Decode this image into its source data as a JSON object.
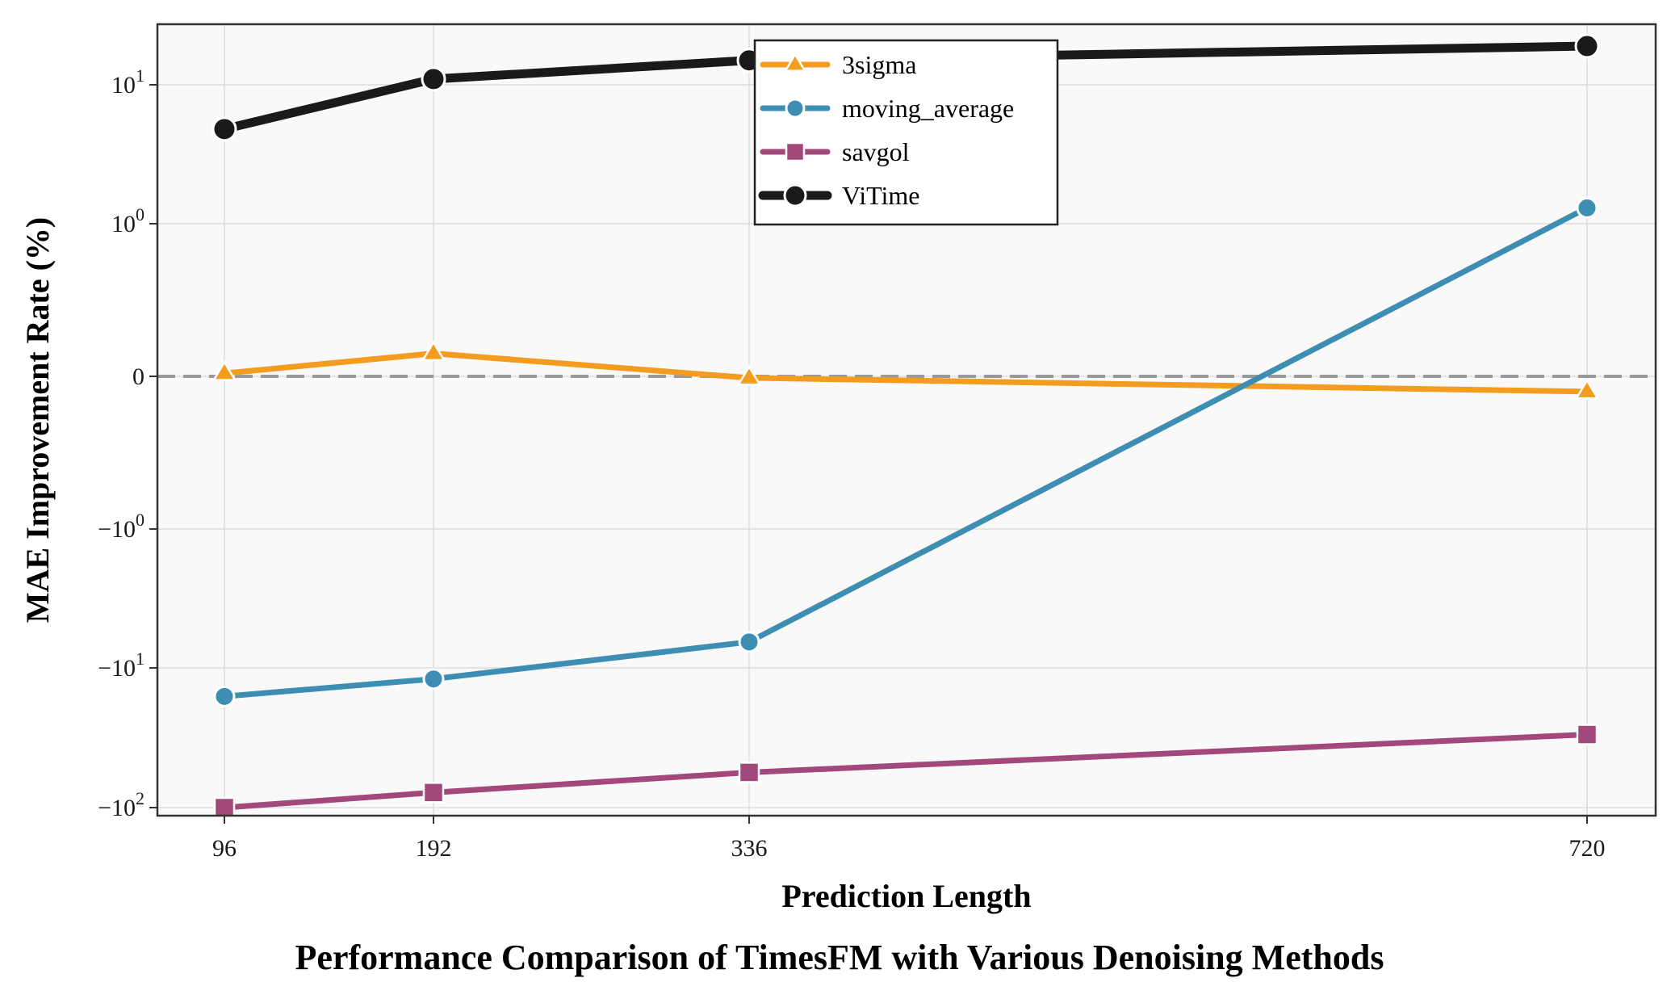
{
  "chart_data": {
    "type": "line",
    "title": "Performance Comparison of TimesFM with Various Denoising Methods",
    "xlabel": "Prediction Length",
    "ylabel": "MAE Improvement Rate (%)",
    "x": [
      96,
      192,
      336,
      720
    ],
    "x_ticks": [
      "96",
      "192",
      "336",
      "720"
    ],
    "yscale": "symlog",
    "ylim": [
      -100,
      25
    ],
    "y_ticks": [
      {
        "value": 10,
        "base": "10",
        "exp": "1"
      },
      {
        "value": 1,
        "base": "10",
        "exp": "0"
      },
      {
        "value": 0,
        "base": "0",
        "exp": ""
      },
      {
        "value": -1,
        "base": "−10",
        "exp": "0"
      },
      {
        "value": -10,
        "base": "−10",
        "exp": "1"
      },
      {
        "value": -100,
        "base": "−10",
        "exp": "2"
      }
    ],
    "grid": true,
    "zero_line": 0,
    "legend_position": "upper-center",
    "series": [
      {
        "name": "3sigma",
        "color": "#F39C1F",
        "marker": "triangle",
        "values": [
          0.02,
          0.15,
          -0.01,
          -0.1
        ]
      },
      {
        "name": "moving_average",
        "color": "#3E8DB3",
        "marker": "circle",
        "values": [
          -16,
          -12,
          -6.5,
          1.3
        ]
      },
      {
        "name": "savgol",
        "color": "#A2487A",
        "marker": "square",
        "values": [
          -100,
          -78,
          -56,
          -30
        ]
      },
      {
        "name": "ViTime",
        "color": "#1A1A1A",
        "marker": "circle",
        "values": [
          4.8,
          11,
          15,
          19
        ]
      }
    ]
  }
}
